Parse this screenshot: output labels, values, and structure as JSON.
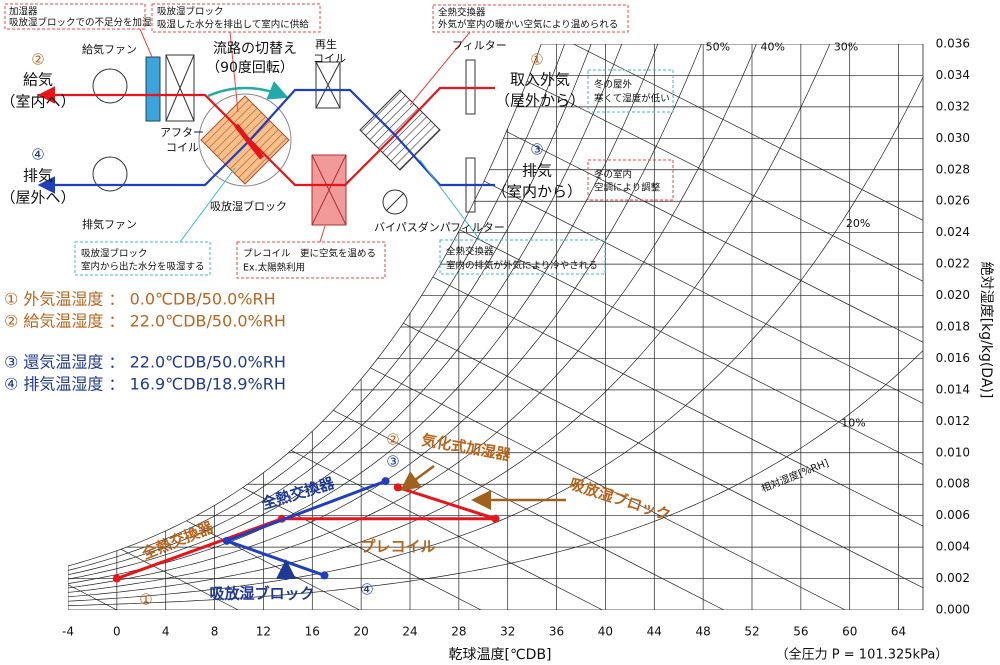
{
  "chart_data": {
    "type": "line",
    "x_label": "乾球温度[℃DB]",
    "y_label": "絶対湿度[kg/kg(DA)]",
    "rh_axis_label": "相対湿度[%RH]",
    "pressure_label": "（全圧力 P = 101.325kPa）",
    "pressure_kpa": 101.325,
    "xlim": [
      -4,
      66
    ],
    "ylim": [
      0,
      0.036
    ],
    "xticks": [
      -4,
      0,
      4,
      8,
      12,
      16,
      20,
      24,
      28,
      32,
      36,
      40,
      44,
      48,
      52,
      56,
      60,
      64
    ],
    "yticks": [
      {
        "value": 0,
        "label": "0.000"
      },
      {
        "value": 0.002,
        "label": "0.002"
      },
      {
        "value": 0.004,
        "label": "0.004"
      },
      {
        "value": 0.006,
        "label": "0.006"
      },
      {
        "value": 0.008,
        "label": "0.008"
      },
      {
        "value": 0.01,
        "label": "0.010"
      },
      {
        "value": 0.012,
        "label": "0.012"
      },
      {
        "value": 0.014,
        "label": "0.014"
      },
      {
        "value": 0.016,
        "label": "0.016"
      },
      {
        "value": 0.018,
        "label": "0.018"
      },
      {
        "value": 0.02,
        "label": "0.020"
      },
      {
        "value": 0.022,
        "label": "0.022"
      },
      {
        "value": 0.024,
        "label": "0.024"
      },
      {
        "value": 0.026,
        "label": "0.026"
      },
      {
        "value": 0.028,
        "label": "0.028"
      },
      {
        "value": 0.03,
        "label": "0.030"
      },
      {
        "value": 0.032,
        "label": "0.032"
      },
      {
        "value": 0.034,
        "label": "0.034"
      },
      {
        "value": 0.036,
        "label": "0.036"
      }
    ],
    "rh_lines": [
      10,
      20,
      30,
      40,
      50,
      60,
      70,
      80,
      90,
      100
    ],
    "rh_labels": [
      {
        "value": 50,
        "label": "50%"
      },
      {
        "value": 40,
        "label": "40%"
      },
      {
        "value": 30,
        "label": "30%"
      },
      {
        "value": 20,
        "label": "20%"
      },
      {
        "value": 10,
        "label": "10%"
      }
    ],
    "enthalpy_lines": [
      0,
      10,
      20,
      30,
      40,
      50,
      60,
      70,
      80,
      90,
      100,
      110,
      120,
      130
    ],
    "series": [
      {
        "color": "#e8141a",
        "x": [
          0,
          13.5,
          31,
          23
        ],
        "values": [
          0.002,
          0.0058,
          0.0058,
          0.0078
        ]
      },
      {
        "color": "#1f3fbf",
        "x": [
          22,
          9,
          17
        ],
        "values": [
          0.0082,
          0.0044,
          0.0022
        ]
      }
    ],
    "annotations": [
      "①",
      "②",
      "③",
      "④",
      "全熱交換器",
      "全熱交換器",
      "気化式加湿器",
      "吸放湿ブロック",
      "プレコイル",
      "吸放湿ブロック"
    ]
  },
  "conditions": [
    "① 外気温湿度 ： 0.0℃DB/50.0%RH",
    "② 給気温湿度 ： 22.0℃DB/50.0%RH",
    "③ 還気温湿度 ： 22.0℃DB/50.0%RH",
    "④ 排気温湿度 ： 16.9℃DB/18.9%RH"
  ],
  "diagram": {
    "callouts": [
      [
        "加湿器",
        "吸放湿ブロックでの不足分を加湿"
      ],
      [
        "吸放湿ブロック",
        "吸湿した水分を排出して室内に供給"
      ],
      [
        "全熱交換器",
        "外気が室内の暖かい空気により温められる"
      ],
      [
        "冬の屋外",
        "寒くて湿度が低い"
      ],
      [
        "冬の室内",
        "空調により調整"
      ],
      [
        "吸放湿ブロック",
        "室内から出た水分を吸湿する"
      ],
      [
        "プレコイル　更に空気を温める",
        "Ex.太陽熱利用"
      ],
      [
        "全熱交換器",
        "室内の排気が外気により冷やされる"
      ]
    ],
    "ports": [
      [
        "②",
        "給気",
        "（室内へ）"
      ],
      [
        "④",
        "排気",
        "（屋外へ）"
      ],
      [
        "①",
        "取入外気",
        "（屋外から）"
      ],
      [
        "③",
        "排気",
        "（室内から）"
      ]
    ],
    "labels": {
      "supply_fan": "給気ファン",
      "after_coil": [
        "アフター",
        "コイル"
      ],
      "switch": [
        "流路の切替え",
        "（90度回転）"
      ],
      "regen_coil": [
        "再生",
        "コイル"
      ],
      "filter_top": "フィルター",
      "filter_bottom": "フィルター",
      "exhaust_fan": "排気ファン",
      "block": "吸放湿ブロック",
      "bypass": "バイパスダンパ"
    }
  }
}
